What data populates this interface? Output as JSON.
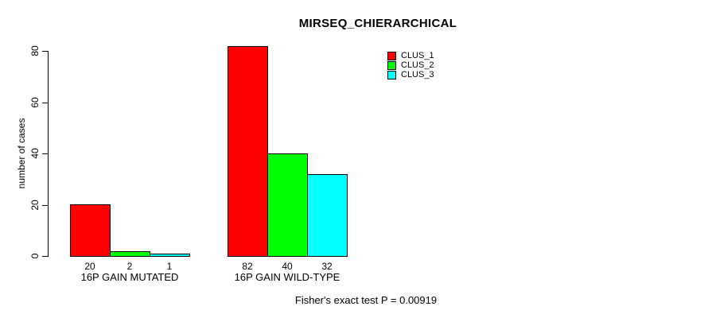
{
  "title": "MIRSEQ_CHIERARCHICAL",
  "chart_data": {
    "type": "bar",
    "title": "MIRSEQ_CHIERARCHICAL",
    "xlabel": "",
    "ylabel": "number of cases",
    "categories": [
      "16P GAIN MUTATED",
      "16P GAIN WILD-TYPE"
    ],
    "series": [
      {
        "name": "CLUS_1",
        "color": "#ff0000",
        "values": [
          20,
          82
        ]
      },
      {
        "name": "CLUS_2",
        "color": "#00ff00",
        "values": [
          2,
          40
        ]
      },
      {
        "name": "CLUS_3",
        "color": "#00ffff",
        "values": [
          1,
          32
        ]
      }
    ],
    "bar_value_labels": [
      [
        20,
        2,
        1
      ],
      [
        82,
        40,
        32
      ]
    ],
    "yticks": [
      0,
      20,
      40,
      60,
      80
    ],
    "ylim": [
      0,
      80
    ],
    "grid": false,
    "legend_position": "top-right",
    "legend_labels": [
      "CLUS_1",
      "CLUS_2",
      "CLUS_3"
    ],
    "annotation": "Fisher's exact test P = 0.00919"
  }
}
